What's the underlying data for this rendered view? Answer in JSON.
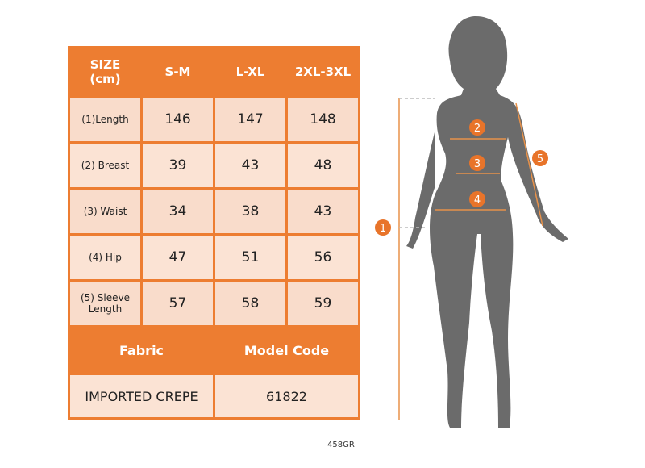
{
  "table": {
    "header": [
      "SIZE\n(cm)",
      "S-M",
      "L-XL",
      "2XL-3XL"
    ],
    "rows": [
      {
        "label": "(1)Length",
        "values": [
          "146",
          "147",
          "148"
        ]
      },
      {
        "label": "(2) Breast",
        "values": [
          "39",
          "43",
          "48"
        ]
      },
      {
        "label": "(3) Waist",
        "values": [
          "34",
          "38",
          "43"
        ]
      },
      {
        "label": "(4) Hip",
        "values": [
          "47",
          "51",
          "56"
        ]
      },
      {
        "label": "(5) Sleeve Length",
        "values": [
          "57",
          "58",
          "59"
        ]
      }
    ],
    "fabric_label": "Fabric",
    "model_code_label": "Model Code",
    "fabric_value": "IMPORTED CREPE",
    "model_code_value": "61822"
  },
  "image_code": "458GR",
  "figure": {
    "markers": [
      "1",
      "2",
      "3",
      "4",
      "5"
    ]
  },
  "colors": {
    "accent": "#ed7d31",
    "cell": "#fbe3d4",
    "silhouette": "#6b6b6b"
  }
}
